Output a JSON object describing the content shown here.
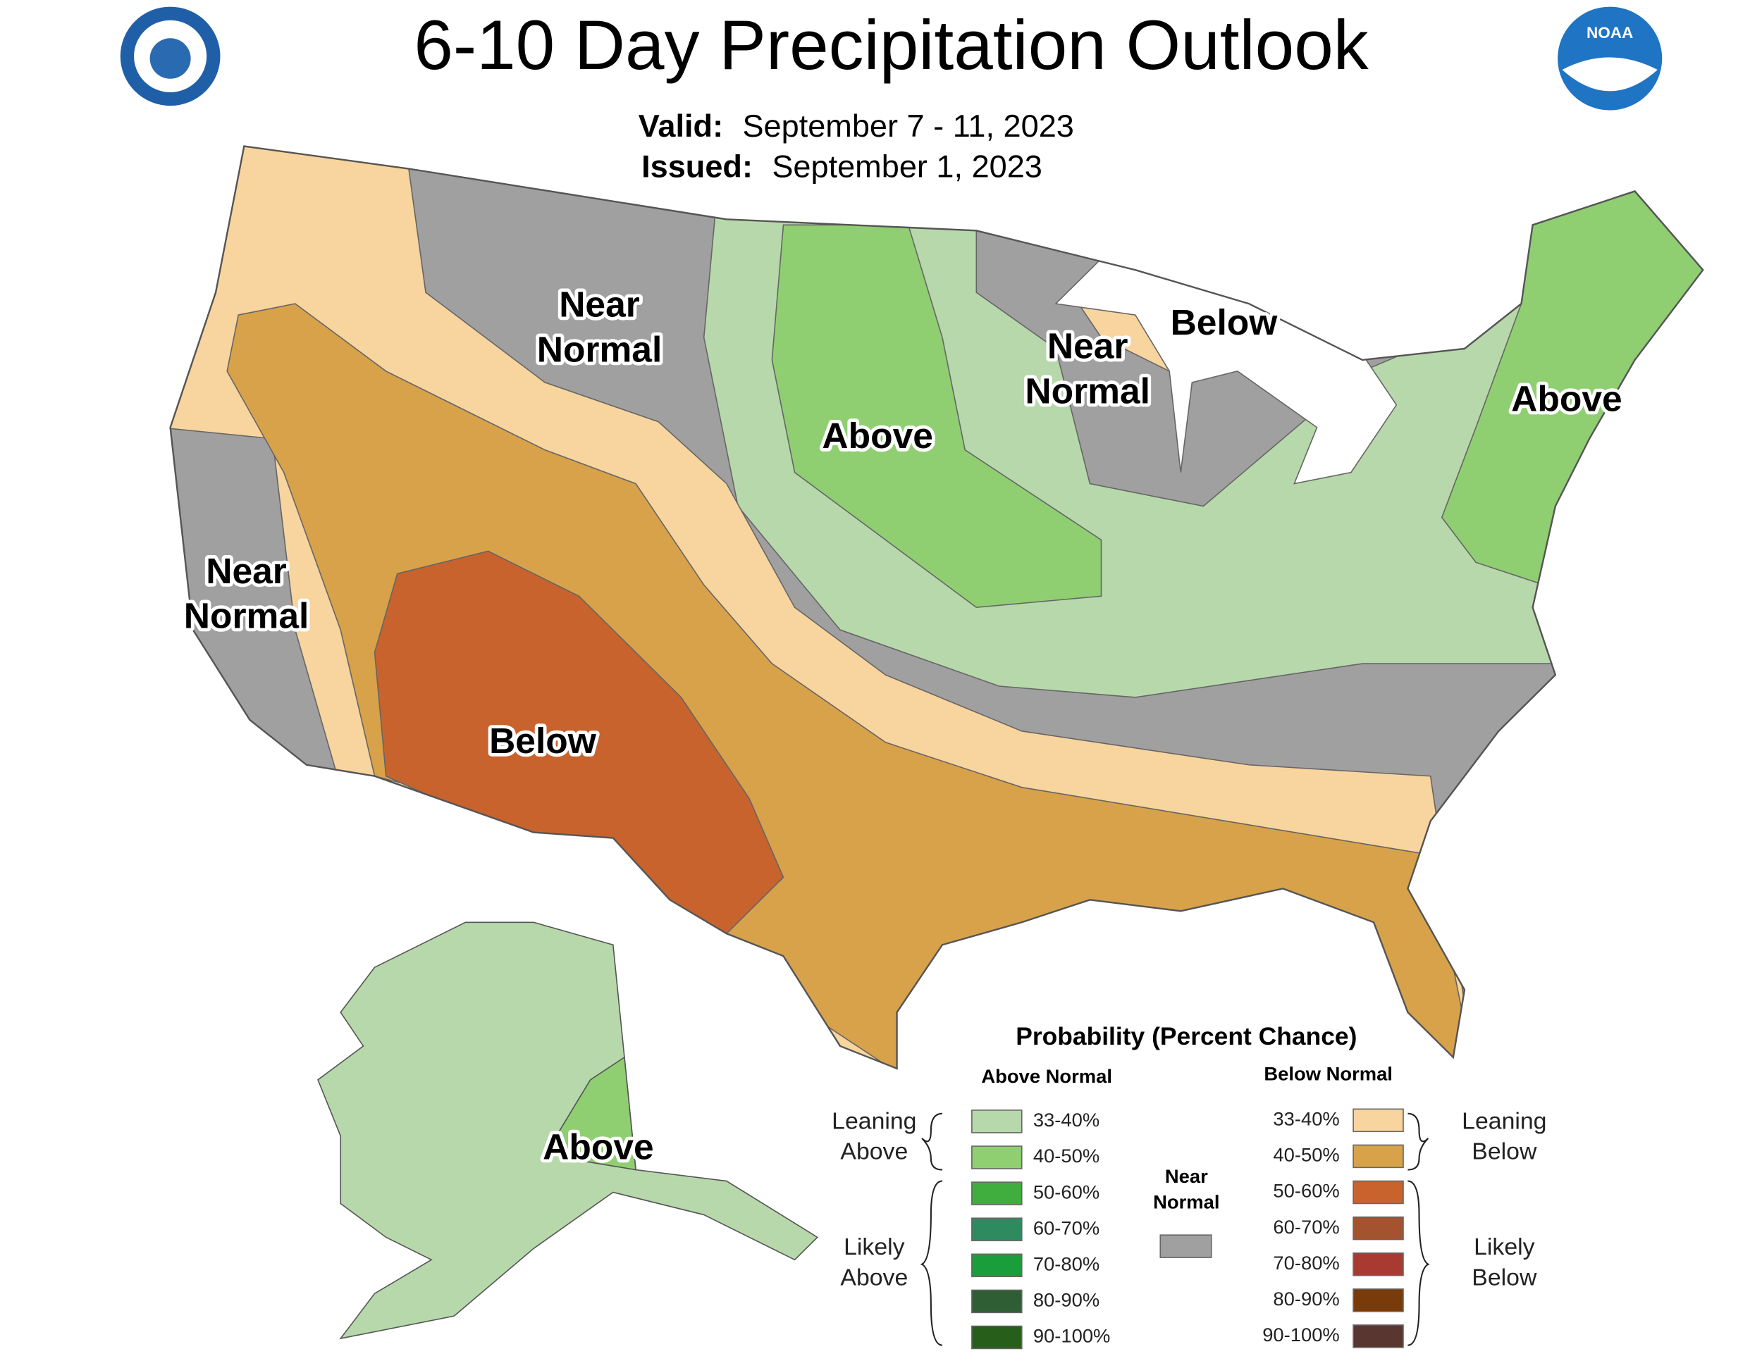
{
  "header": {
    "title": "6-10 Day Precipitation Outlook",
    "valid_label": "Valid:",
    "valid": "September 7 - 11, 2023",
    "issued_label": "Issued:",
    "issued": "September 1, 2023",
    "noaa": "NOAA"
  },
  "map_labels": [
    [
      "Near",
      "Normal"
    ],
    [
      "Near",
      "Normal"
    ],
    [
      "Below"
    ],
    [
      "Above"
    ],
    [
      "Above"
    ],
    [
      "Near",
      "Normal"
    ],
    [
      "Below"
    ],
    [
      "Above"
    ]
  ],
  "legend": {
    "title": "Probability (Percent Chance)",
    "above_header": "Above Normal",
    "below_header": "Below Normal",
    "above_items": [
      {
        "label": "33-40%",
        "color": "#b7d8ab"
      },
      {
        "label": "40-50%",
        "color": "#8fcf72"
      },
      {
        "label": "50-60%",
        "color": "#3fae3f"
      },
      {
        "label": "60-70%",
        "color": "#2e8b60"
      },
      {
        "label": "70-80%",
        "color": "#1a9d3b"
      },
      {
        "label": "80-90%",
        "color": "#2f5d34"
      },
      {
        "label": "90-100%",
        "color": "#275e1a"
      }
    ],
    "below_items": [
      {
        "label": "33-40%",
        "color": "#f8d49e"
      },
      {
        "label": "40-50%",
        "color": "#d8a24a"
      },
      {
        "label": "50-60%",
        "color": "#c8632d"
      },
      {
        "label": "60-70%",
        "color": "#a5522e"
      },
      {
        "label": "70-80%",
        "color": "#a83a32"
      },
      {
        "label": "80-90%",
        "color": "#7a3b0a"
      },
      {
        "label": "90-100%",
        "color": "#5a3630"
      }
    ],
    "near_normal": [
      "Near",
      "Normal"
    ],
    "near_color": "#a0a0a0",
    "leaning_above": [
      "Leaning",
      "Above"
    ],
    "likely_above": [
      "Likely",
      "Above"
    ],
    "leaning_below": [
      "Leaning",
      "Below"
    ],
    "likely_below": [
      "Likely",
      "Below"
    ]
  }
}
